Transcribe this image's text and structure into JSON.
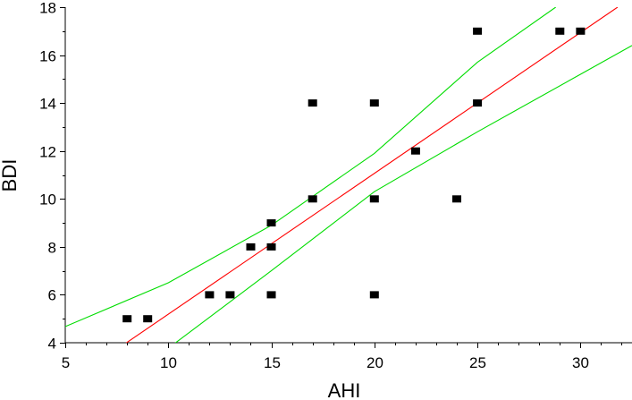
{
  "chart_data": {
    "type": "scatter",
    "title": "",
    "xlabel": "AHI",
    "ylabel": "BDI",
    "xlim": [
      5,
      32.5
    ],
    "ylim": [
      4,
      18
    ],
    "x_ticks": [
      5,
      10,
      15,
      20,
      25,
      30
    ],
    "y_ticks": [
      4,
      6,
      8,
      10,
      12,
      14,
      16,
      18
    ],
    "x_tick_labels": [
      "5",
      "10",
      "15",
      "20",
      "25",
      "30"
    ],
    "y_tick_labels": [
      "4",
      "6",
      "8",
      "10",
      "12",
      "14",
      "16",
      "18"
    ],
    "grid": false,
    "series": [
      {
        "kind": "points",
        "marker": "square",
        "color": "#000000",
        "x": [
          8,
          9,
          12,
          13,
          14,
          15,
          15,
          15,
          17,
          17,
          20,
          20,
          20,
          22,
          24,
          25,
          25,
          29,
          30
        ],
        "y": [
          5,
          5,
          6,
          6,
          8,
          6,
          8,
          9,
          10,
          14,
          6,
          10,
          14,
          12,
          10,
          14,
          17,
          17,
          17
        ]
      },
      {
        "kind": "line",
        "color": "#ff0000",
        "x": [
          7.8,
          31.8
        ],
        "y": [
          3.9,
          18.0
        ]
      },
      {
        "kind": "line",
        "color": "#00dd00",
        "x": [
          4.8,
          10,
          15,
          20,
          25,
          28.8
        ],
        "y": [
          4.6,
          6.5,
          8.9,
          11.9,
          15.7,
          18.0
        ]
      },
      {
        "kind": "line",
        "color": "#00dd00",
        "x": [
          10.2,
          15,
          20,
          25,
          30,
          32.5
        ],
        "y": [
          3.9,
          7.0,
          10.3,
          12.8,
          15.2,
          16.4
        ]
      }
    ]
  }
}
